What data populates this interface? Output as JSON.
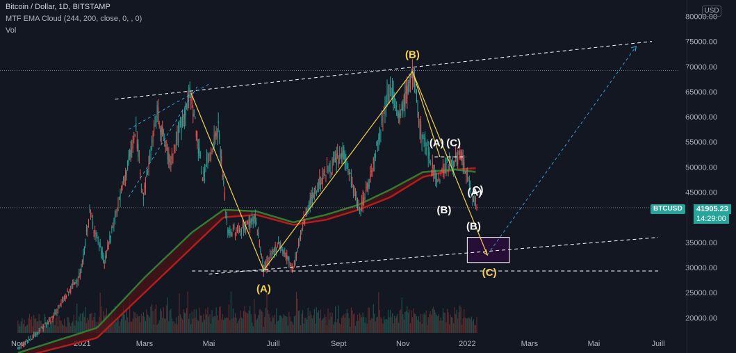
{
  "header": {
    "title": "Bitcoin / Dollar, 1D, BITSTAMP",
    "indicator": "MTF EMA Cloud (244, 200, close, 0, , 0)",
    "volume": "Vol"
  },
  "currency_button": "USD",
  "price_badge": {
    "symbol": "BTCUSD",
    "price": "41905.23",
    "countdown": "14:29:00"
  },
  "colors": {
    "background": "#131722",
    "up": "#26a69a",
    "down": "#ef5350",
    "grid_text": "#b2b5be",
    "yellow": "#f7d348",
    "white": "#ffffff",
    "blue_dash": "#2196f3",
    "box_fill": "#2a0d3a",
    "ema_green": "#2e7d32",
    "ema_red": "#b71c1c"
  },
  "chart_data": {
    "type": "candlestick",
    "title": "Bitcoin / Dollar, 1D, BITSTAMP",
    "x_tick_labels": [
      "Nov",
      "2021",
      "Mars",
      "Mai",
      "Juill",
      "Sept",
      "Nov",
      "2022",
      "Mars",
      "Mai",
      "Juill"
    ],
    "y_tick_labels": [
      "80000.00",
      "75000.00",
      "70000.00",
      "65000.00",
      "60000.00",
      "55000.00",
      "50000.00",
      "45000.00",
      "35000.00",
      "30000.00",
      "25000.00",
      "20000.00"
    ],
    "ylim": [
      17000,
      82000
    ],
    "price_path": [
      [
        "2020-11-01",
        13800
      ],
      [
        "2020-12-01",
        19200
      ],
      [
        "2020-12-31",
        29000
      ],
      [
        "2021-01-08",
        41000
      ],
      [
        "2021-01-22",
        31000
      ],
      [
        "2021-02-08",
        46000
      ],
      [
        "2021-02-21",
        57000
      ],
      [
        "2021-02-28",
        44000
      ],
      [
        "2021-03-13",
        61000
      ],
      [
        "2021-03-25",
        51000
      ],
      [
        "2021-04-14",
        64800
      ],
      [
        "2021-04-25",
        48000
      ],
      [
        "2021-05-10",
        58000
      ],
      [
        "2021-05-19",
        37000
      ],
      [
        "2021-06-01",
        37500
      ],
      [
        "2021-06-14",
        40000
      ],
      [
        "2021-06-22",
        29500
      ],
      [
        "2021-07-06",
        35000
      ],
      [
        "2021-07-20",
        29800
      ],
      [
        "2021-08-01",
        41000
      ],
      [
        "2021-08-14",
        47000
      ],
      [
        "2021-08-20",
        49000
      ],
      [
        "2021-09-06",
        52800
      ],
      [
        "2021-09-21",
        41000
      ],
      [
        "2021-10-01",
        48000
      ],
      [
        "2021-10-20",
        67000
      ],
      [
        "2021-10-28",
        59000
      ],
      [
        "2021-11-10",
        69000
      ],
      [
        "2021-11-18",
        57000
      ],
      [
        "2021-12-04",
        47000
      ],
      [
        "2021-12-10",
        50000
      ],
      [
        "2021-12-27",
        52000
      ],
      [
        "2022-01-03",
        46000
      ],
      [
        "2022-01-10",
        41905
      ]
    ],
    "ema_cloud": [
      [
        "2020-11-01",
        13000,
        12000
      ],
      [
        "2021-01-15",
        18000,
        16000
      ],
      [
        "2021-03-01",
        28000,
        25000
      ],
      [
        "2021-04-15",
        37000,
        34000
      ],
      [
        "2021-05-15",
        41500,
        40000
      ],
      [
        "2021-06-15",
        41200,
        40500
      ],
      [
        "2021-07-20",
        39000,
        38500
      ],
      [
        "2021-08-20",
        40500,
        39500
      ],
      [
        "2021-09-20",
        42500,
        41500
      ],
      [
        "2021-10-20",
        45500,
        44000
      ],
      [
        "2021-11-20",
        49000,
        48000
      ],
      [
        "2021-12-20",
        49500,
        49500
      ],
      [
        "2022-01-10",
        49000,
        49800
      ]
    ],
    "wave_lines": [
      {
        "color": "yellow",
        "points": [
          [
            "2021-04-14",
            64800
          ],
          [
            "2021-06-22",
            29500
          ],
          [
            "2021-11-10",
            69000
          ],
          [
            "2022-01-20",
            32500
          ]
        ]
      },
      {
        "color": "yellow",
        "points": [
          [
            "2021-11-10",
            69000
          ],
          [
            "2021-12-06",
            52000
          ]
        ]
      }
    ],
    "trend_lines": [
      {
        "style": "white-dash",
        "points": [
          [
            "2021-02-01",
            63500
          ],
          [
            "2022-06-25",
            75000
          ]
        ]
      },
      {
        "style": "white-dash",
        "points": [
          [
            "2021-05-01",
            28700
          ],
          [
            "2022-07-01",
            36000
          ]
        ]
      },
      {
        "style": "white-dash",
        "points": [
          [
            "2021-04-15",
            29300
          ],
          [
            "2022-07-01",
            29300
          ]
        ]
      },
      {
        "style": "white-dash",
        "points": [
          [
            "2021-12-01",
            52000
          ],
          [
            "2021-12-31",
            52000
          ]
        ]
      },
      {
        "style": "blue-dash",
        "points": [
          [
            "2021-02-14",
            44000
          ],
          [
            "2021-04-20",
            66000
          ]
        ]
      },
      {
        "style": "blue-dash",
        "points": [
          [
            "2021-02-14",
            57500
          ],
          [
            "2021-05-01",
            66500
          ]
        ]
      },
      {
        "style": "blue-dash",
        "points": [
          [
            "2022-01-20",
            32500
          ],
          [
            "2022-06-10",
            74000
          ]
        ]
      },
      {
        "style": "grey-dot",
        "points": [
          [
            "2020-10-15",
            69200
          ],
          [
            "2022-07-20",
            69200
          ]
        ]
      },
      {
        "style": "grey-dot",
        "points": [
          [
            "2020-10-15",
            41905
          ],
          [
            "2022-07-20",
            41905
          ]
        ]
      }
    ],
    "target_box": {
      "x_from": "2022-01-01",
      "x_to": "2022-02-10",
      "y_from": 31000,
      "y_to": 36000
    },
    "annotations": [
      {
        "text": "(B)",
        "x": "2021-11-10",
        "y": 72400,
        "color": "yellow"
      },
      {
        "text": "(A)",
        "x": "2021-06-22",
        "y": 25800,
        "color": "yellow"
      },
      {
        "text": "(C)",
        "x": "2022-01-22",
        "y": 29000,
        "color": "yellow"
      },
      {
        "text": "(A)",
        "x": "2021-12-03",
        "y": 54800,
        "color": "white"
      },
      {
        "text": "(C)",
        "x": "2021-12-19",
        "y": 54800,
        "color": "white"
      },
      {
        "text": "(B)",
        "x": "2021-12-10",
        "y": 41500,
        "color": "white"
      },
      {
        "text": "(B)",
        "x": "2022-01-07",
        "y": 38200,
        "color": "white"
      },
      {
        "text": "(A)",
        "x": "2022-01-08",
        "y": 45000,
        "color": "white"
      },
      {
        "text": "C)",
        "x": "2022-01-11",
        "y": 45500,
        "color": "white"
      }
    ]
  }
}
